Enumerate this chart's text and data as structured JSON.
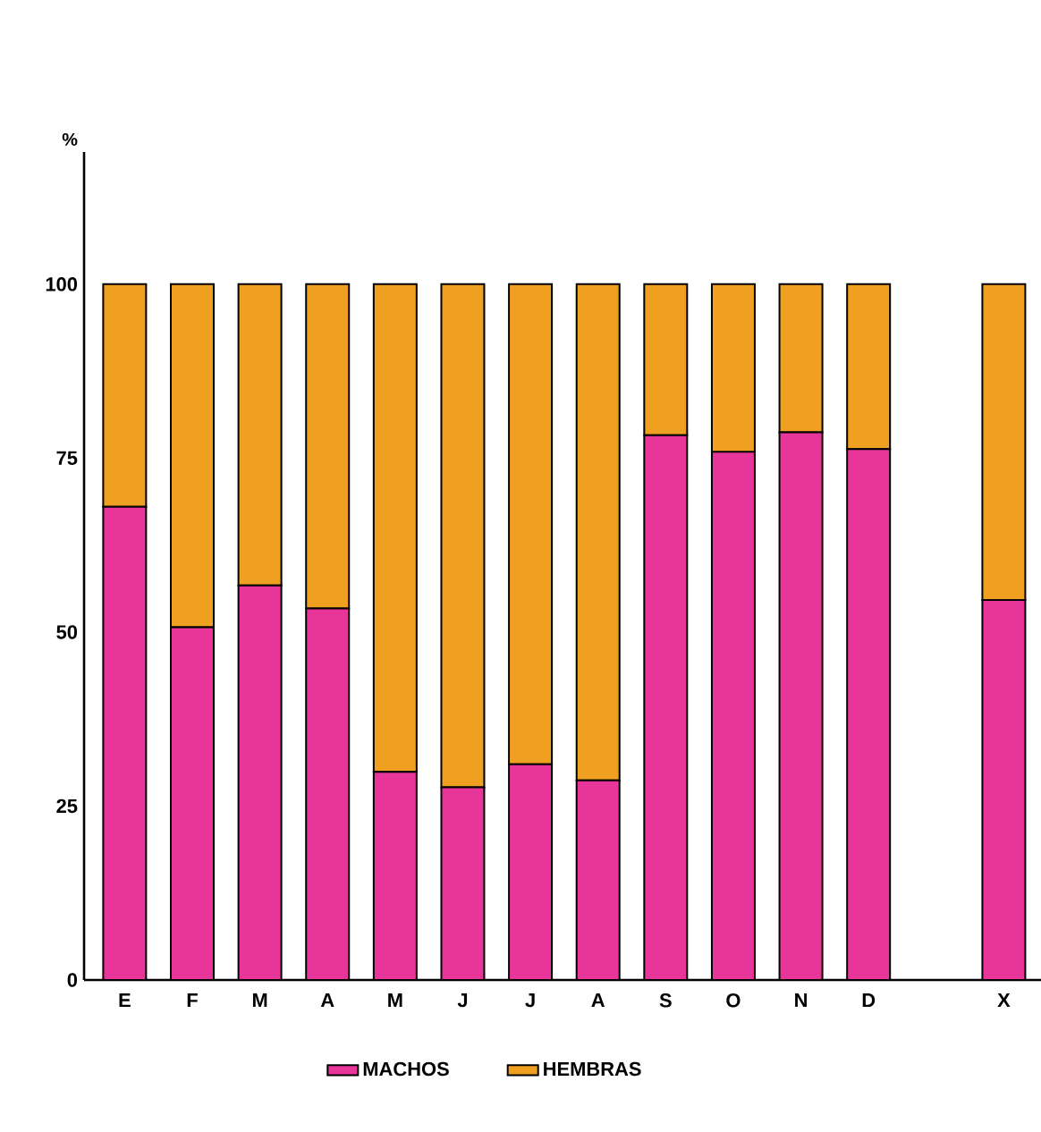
{
  "chart_data": {
    "type": "bar",
    "stacked": true,
    "ylabel": "%",
    "categories": [
      "E",
      "F",
      "M",
      "A",
      "M",
      "J",
      "J",
      "A",
      "S",
      "O",
      "N",
      "D",
      null,
      "X"
    ],
    "series": [
      {
        "name": "MACHOS",
        "color": "#e8359a",
        "values": [
          68.0,
          50.7,
          56.7,
          53.4,
          29.9,
          27.7,
          31.0,
          28.7,
          78.3,
          75.9,
          78.7,
          76.3,
          null,
          54.6
        ]
      },
      {
        "name": "HEMBRAS",
        "color": "#f0a020",
        "values": [
          32.0,
          49.3,
          43.3,
          46.6,
          70.1,
          72.3,
          69.0,
          71.3,
          21.7,
          24.1,
          21.3,
          23.7,
          null,
          45.4
        ]
      }
    ],
    "ylim": [
      0,
      119
    ],
    "yticks": [
      0,
      25,
      50,
      75,
      100
    ],
    "grid": false,
    "legend": "bottom"
  }
}
